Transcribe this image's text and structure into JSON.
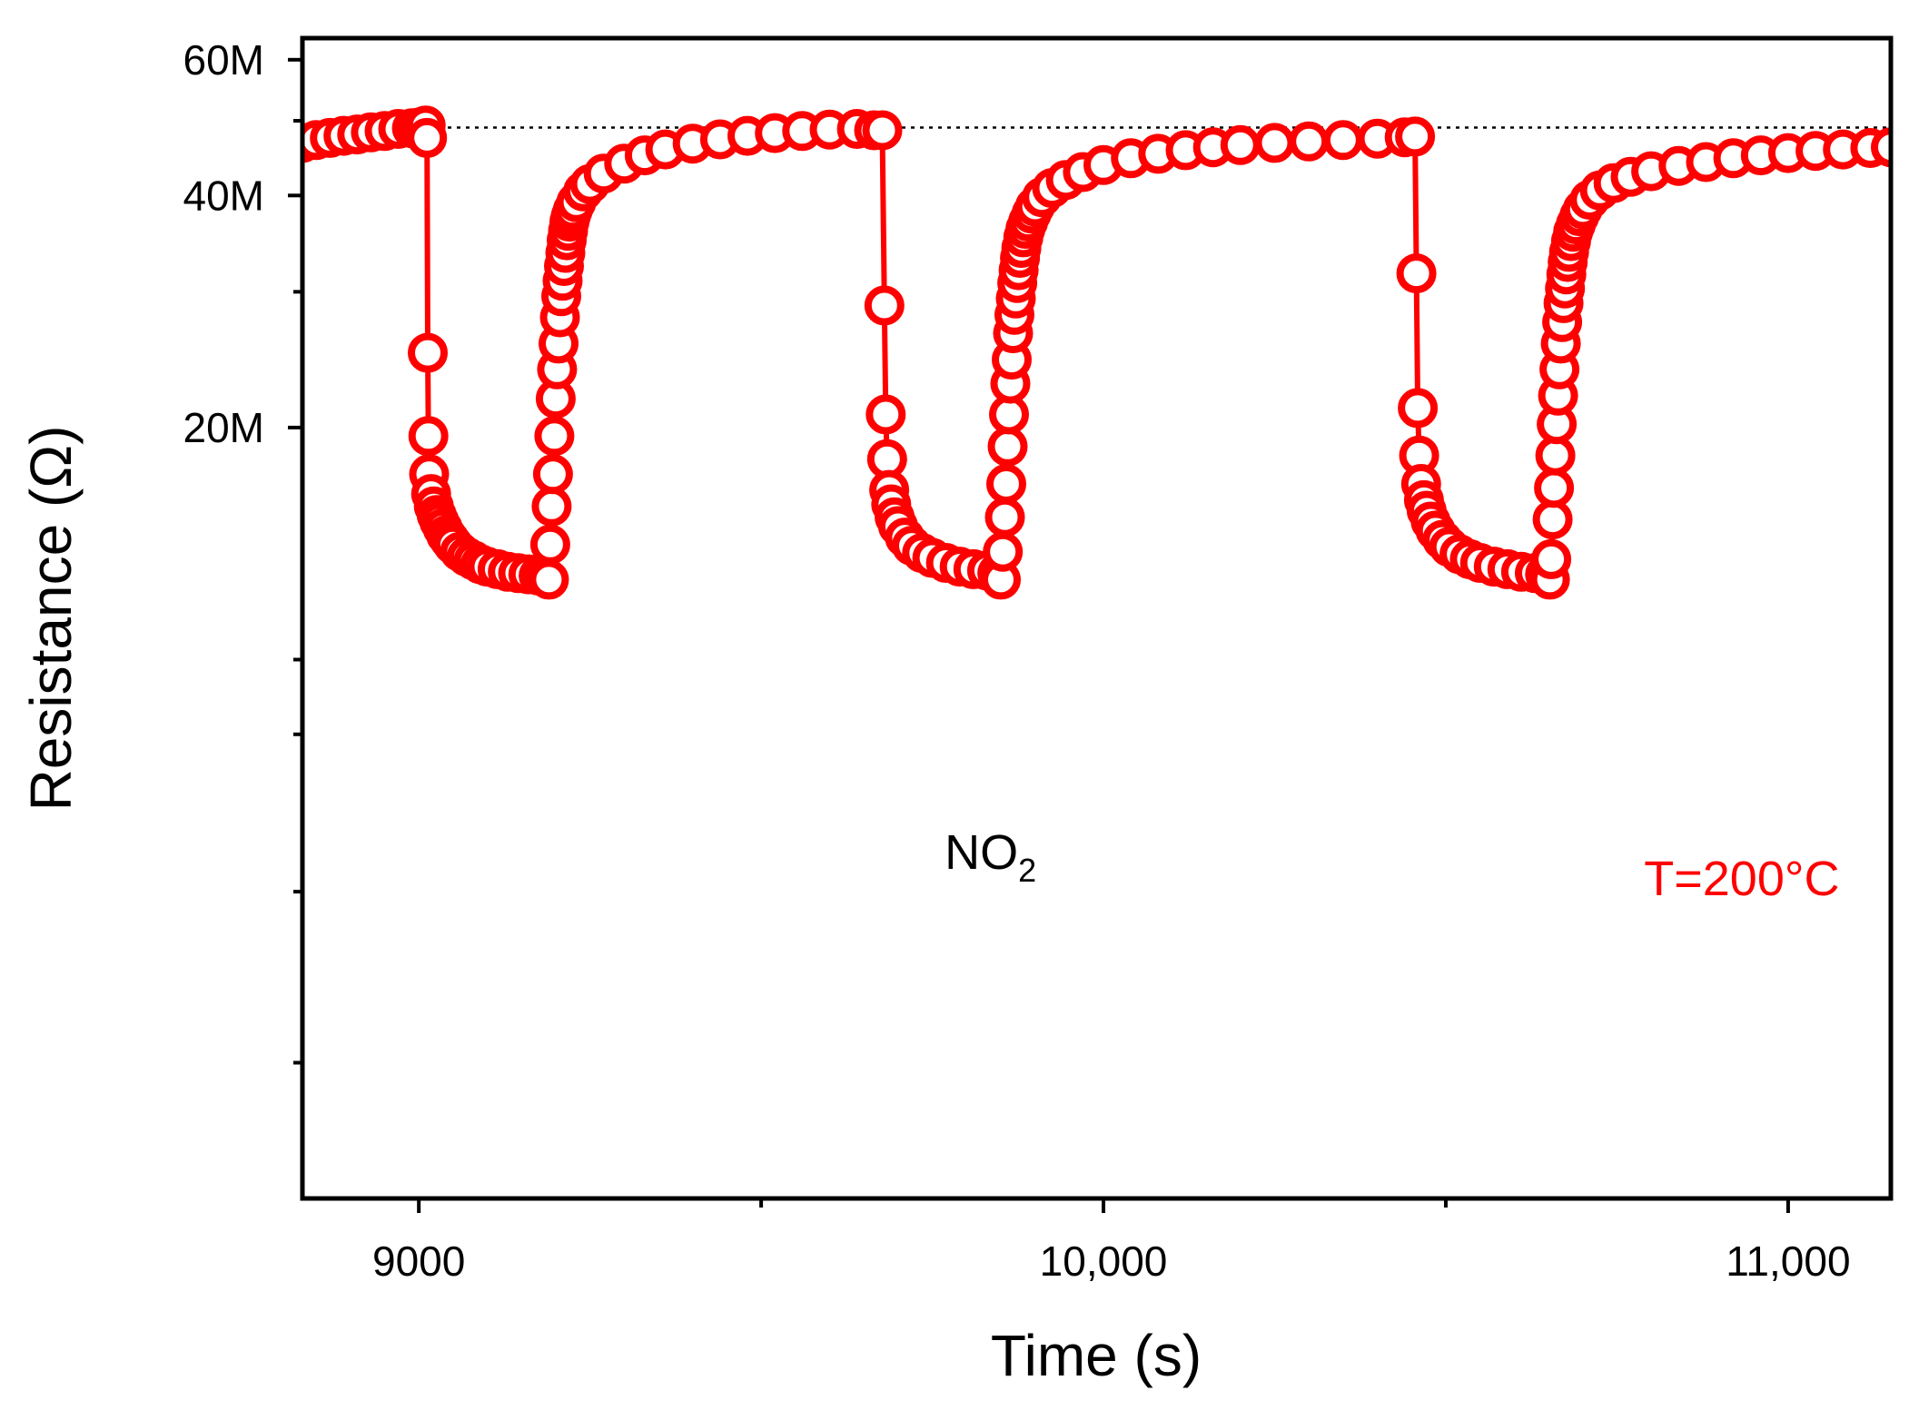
{
  "chart_data": {
    "type": "scatter",
    "title": "",
    "xlabel": "Time (s)",
    "ylabel": "Resistance (Ω)",
    "xlim": [
      8830,
      11150
    ],
    "ylim": [
      2000000,
      64000000
    ],
    "y_scale": "log",
    "x_ticks": [
      {
        "value": 9000,
        "label": "9000"
      },
      {
        "value": 10000,
        "label": "10,000"
      },
      {
        "value": 11000,
        "label": "11,000"
      }
    ],
    "x_minor_ticks": [
      9500,
      10500
    ],
    "y_ticks": [
      {
        "value": 20000000,
        "label": "20M"
      },
      {
        "value": 40000000,
        "label": "40M"
      },
      {
        "value": 60000000,
        "label": "60M"
      }
    ],
    "y_minor_ticks": [
      3000000,
      5000000,
      8000000,
      10000000,
      30000000,
      50000000
    ],
    "reference_line": {
      "y": 49000000,
      "style": "dotted"
    },
    "annotations": [
      {
        "name": "gas-label",
        "prefix": "NO",
        "subscript": "2",
        "x": 9835,
        "y": 5350000
      },
      {
        "name": "temperature-label",
        "text": "T=200°C",
        "x": 11075,
        "y": 4950000
      }
    ],
    "series": [
      {
        "name": "Resistance",
        "color": "#ff0000",
        "marker": "open-circle",
        "points": [
          [
            8830,
            46800000
          ],
          [
            8850,
            47200000
          ],
          [
            8870,
            47500000
          ],
          [
            8890,
            47800000
          ],
          [
            8910,
            48000000
          ],
          [
            8930,
            48300000
          ],
          [
            8950,
            48500000
          ],
          [
            8970,
            48800000
          ],
          [
            8990,
            48900000
          ],
          [
            9000,
            49000000
          ],
          [
            9010,
            49300000
          ],
          [
            9012,
            47500000
          ],
          [
            9013,
            25000000
          ],
          [
            9014,
            19500000
          ],
          [
            9015,
            17400000
          ],
          [
            9018,
            16400000
          ],
          [
            9022,
            15800000
          ],
          [
            9026,
            15400000
          ],
          [
            9030,
            15100000
          ],
          [
            9035,
            14800000
          ],
          [
            9040,
            14500000
          ],
          [
            9045,
            14300000
          ],
          [
            9050,
            14100000
          ],
          [
            9060,
            13800000
          ],
          [
            9070,
            13600000
          ],
          [
            9080,
            13450000
          ],
          [
            9090,
            13300000
          ],
          [
            9100,
            13200000
          ],
          [
            9115,
            13100000
          ],
          [
            9130,
            13000000
          ],
          [
            9145,
            12950000
          ],
          [
            9160,
            12900000
          ],
          [
            9175,
            12850000
          ],
          [
            9185,
            12800000
          ],
          [
            9190,
            12700000
          ],
          [
            9192,
            14100000
          ],
          [
            9194,
            15800000
          ],
          [
            9196,
            17400000
          ],
          [
            9198,
            19500000
          ],
          [
            9200,
            21800000
          ],
          [
            9202,
            23800000
          ],
          [
            9204,
            25700000
          ],
          [
            9206,
            27800000
          ],
          [
            9208,
            29600000
          ],
          [
            9210,
            31000000
          ],
          [
            9212,
            32400000
          ],
          [
            9214,
            33700000
          ],
          [
            9216,
            35000000
          ],
          [
            9218,
            36000000
          ],
          [
            9220,
            37000000
          ],
          [
            9222,
            37600000
          ],
          [
            9225,
            38300000
          ],
          [
            9230,
            39200000
          ],
          [
            9240,
            40500000
          ],
          [
            9250,
            41400000
          ],
          [
            9270,
            42700000
          ],
          [
            9300,
            44000000
          ],
          [
            9330,
            45100000
          ],
          [
            9360,
            45900000
          ],
          [
            9400,
            46700000
          ],
          [
            9440,
            47300000
          ],
          [
            9480,
            47800000
          ],
          [
            9520,
            48200000
          ],
          [
            9560,
            48500000
          ],
          [
            9600,
            48700000
          ],
          [
            9640,
            48800000
          ],
          [
            9665,
            48600000
          ],
          [
            9677,
            48600000
          ],
          [
            9680,
            28800000
          ],
          [
            9682,
            20800000
          ],
          [
            9684,
            18200000
          ],
          [
            9687,
            16600000
          ],
          [
            9690,
            15900000
          ],
          [
            9695,
            15300000
          ],
          [
            9700,
            14900000
          ],
          [
            9710,
            14400000
          ],
          [
            9720,
            14050000
          ],
          [
            9735,
            13750000
          ],
          [
            9750,
            13550000
          ],
          [
            9770,
            13350000
          ],
          [
            9790,
            13200000
          ],
          [
            9810,
            13100000
          ],
          [
            9830,
            13050000
          ],
          [
            9845,
            12950000
          ],
          [
            9850,
            12700000
          ],
          [
            9853,
            13800000
          ],
          [
            9856,
            15300000
          ],
          [
            9858,
            16900000
          ],
          [
            9860,
            18900000
          ],
          [
            9862,
            20800000
          ],
          [
            9864,
            22800000
          ],
          [
            9866,
            24500000
          ],
          [
            9868,
            26500000
          ],
          [
            9870,
            28000000
          ],
          [
            9872,
            29400000
          ],
          [
            9874,
            30800000
          ],
          [
            9876,
            32000000
          ],
          [
            9878,
            33200000
          ],
          [
            9880,
            34200000
          ],
          [
            9883,
            35300000
          ],
          [
            9886,
            36200000
          ],
          [
            9890,
            37000000
          ],
          [
            9895,
            37900000
          ],
          [
            9900,
            38700000
          ],
          [
            9910,
            39800000
          ],
          [
            9925,
            40900000
          ],
          [
            9945,
            41900000
          ],
          [
            9970,
            42900000
          ],
          [
            10000,
            43800000
          ],
          [
            10040,
            44700000
          ],
          [
            10080,
            45300000
          ],
          [
            10120,
            45800000
          ],
          [
            10160,
            46200000
          ],
          [
            10200,
            46500000
          ],
          [
            10250,
            46800000
          ],
          [
            10300,
            47000000
          ],
          [
            10350,
            47200000
          ],
          [
            10400,
            47400000
          ],
          [
            10440,
            47600000
          ],
          [
            10455,
            47700000
          ],
          [
            10457,
            31700000
          ],
          [
            10459,
            21200000
          ],
          [
            10461,
            18400000
          ],
          [
            10464,
            16900000
          ],
          [
            10468,
            16100000
          ],
          [
            10472,
            15600000
          ],
          [
            10478,
            15100000
          ],
          [
            10485,
            14700000
          ],
          [
            10495,
            14300000
          ],
          [
            10505,
            14000000
          ],
          [
            10520,
            13700000
          ],
          [
            10535,
            13500000
          ],
          [
            10550,
            13350000
          ],
          [
            10570,
            13200000
          ],
          [
            10590,
            13100000
          ],
          [
            10610,
            13000000
          ],
          [
            10630,
            12950000
          ],
          [
            10645,
            12900000
          ],
          [
            10652,
            12700000
          ],
          [
            10654,
            13500000
          ],
          [
            10656,
            15200000
          ],
          [
            10658,
            16700000
          ],
          [
            10660,
            18400000
          ],
          [
            10662,
            20200000
          ],
          [
            10664,
            22000000
          ],
          [
            10666,
            23800000
          ],
          [
            10668,
            25700000
          ],
          [
            10670,
            27400000
          ],
          [
            10672,
            29000000
          ],
          [
            10674,
            30300000
          ],
          [
            10676,
            31600000
          ],
          [
            10678,
            32800000
          ],
          [
            10680,
            33800000
          ],
          [
            10683,
            34900000
          ],
          [
            10686,
            35900000
          ],
          [
            10690,
            36700000
          ],
          [
            10695,
            37600000
          ],
          [
            10700,
            38400000
          ],
          [
            10710,
            39500000
          ],
          [
            10725,
            40600000
          ],
          [
            10745,
            41500000
          ],
          [
            10770,
            42300000
          ],
          [
            10800,
            43000000
          ],
          [
            10840,
            43700000
          ],
          [
            10880,
            44200000
          ],
          [
            10920,
            44700000
          ],
          [
            10960,
            45100000
          ],
          [
            11000,
            45400000
          ],
          [
            11040,
            45700000
          ],
          [
            11080,
            45900000
          ],
          [
            11120,
            46100000
          ],
          [
            11150,
            46200000
          ]
        ]
      }
    ]
  }
}
